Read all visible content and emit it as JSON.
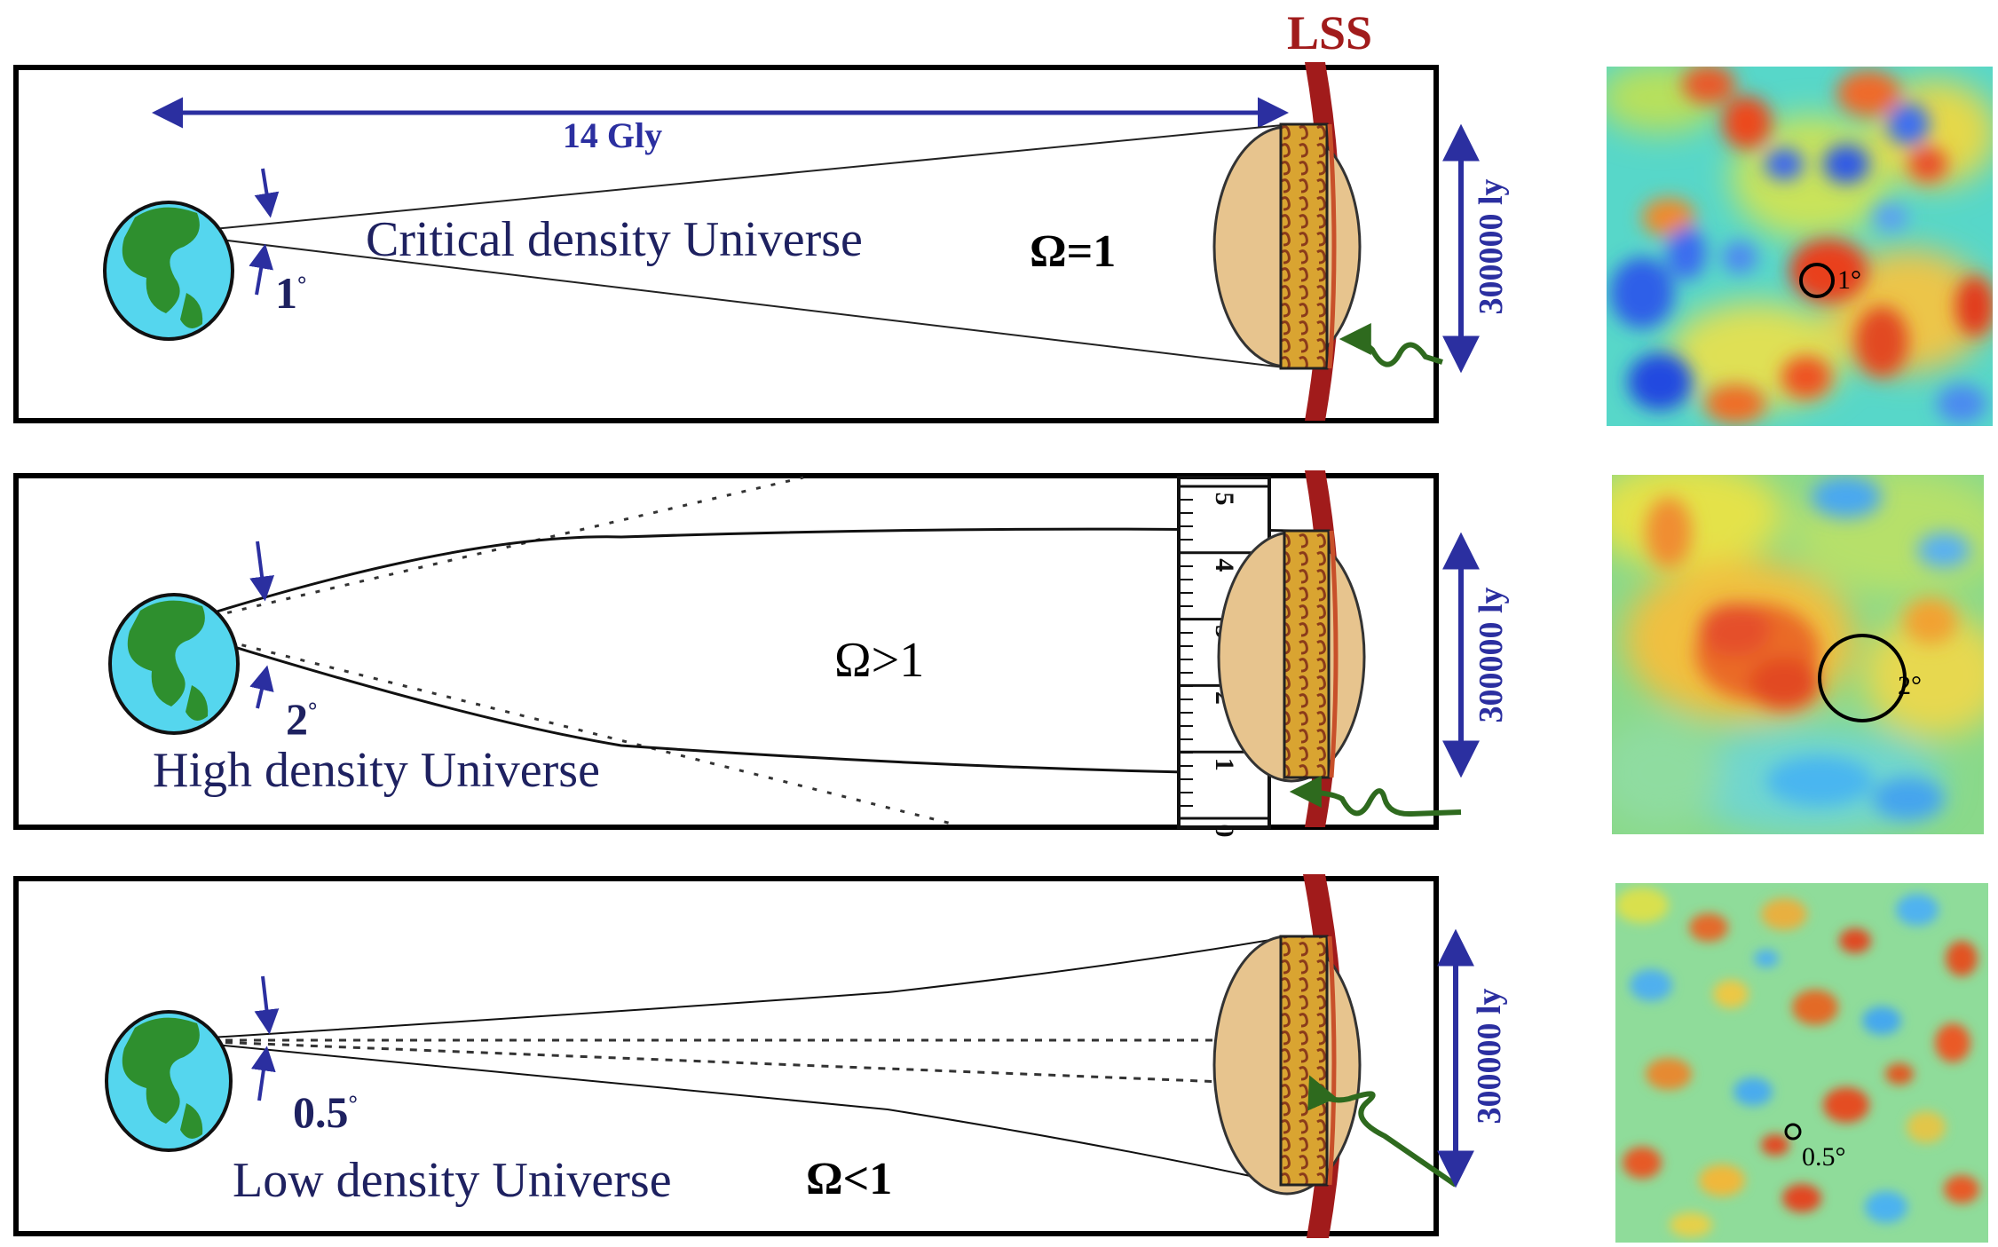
{
  "header": {
    "lss_label": "LSS"
  },
  "colors": {
    "arrow_blue": "#2b2fa0",
    "lss_red": "#a11b1b",
    "earth_ocean": "#55d6ee",
    "earth_land": "#2e8f2e",
    "blob_fill": "#e7c48e",
    "ruler_fill": "#d9a431",
    "photon_green": "#2e6a1e"
  },
  "panels": [
    {
      "id": "critical",
      "distance_label": "14 Gly",
      "angle_label": "1",
      "degree_symbol": "°",
      "universe_label": "Critical density Universe",
      "omega_label": "Ω=1",
      "scale_label": "300000 ly",
      "map_circle_label": "1°"
    },
    {
      "id": "high",
      "angle_label": "2",
      "degree_symbol": "°",
      "universe_label": "High density Universe",
      "omega_label": "Ω>1",
      "scale_label": "300000 ly",
      "map_circle_label": "2°",
      "ruler_ticks": [
        "5",
        "4",
        "3",
        "2",
        "1",
        "0"
      ]
    },
    {
      "id": "low",
      "angle_label": "0.5",
      "degree_symbol": "°",
      "universe_label": "Low density Universe",
      "omega_label": "Ω<1",
      "scale_label": "300000 ly",
      "map_circle_label": "0.5°"
    }
  ]
}
